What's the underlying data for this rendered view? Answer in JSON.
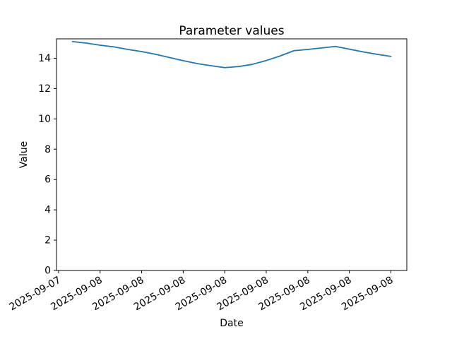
{
  "figure": {
    "title": "Parameter values",
    "xlabel": "Date",
    "ylabel": "Value"
  },
  "chart_data": {
    "type": "line",
    "title": "Parameter values",
    "xlabel": "Date",
    "ylabel": "Value",
    "legend": null,
    "grid": false,
    "line_color": "#1f77b4",
    "axis_color": "#000000",
    "background_color": "#ffffff",
    "x_times": [
      "2025-09-07 22:00",
      "2025-09-07 23:00",
      "2025-09-08 00:00",
      "2025-09-08 01:00",
      "2025-09-08 02:00",
      "2025-09-08 03:00",
      "2025-09-08 04:00",
      "2025-09-08 05:00",
      "2025-09-08 06:00",
      "2025-09-08 07:00",
      "2025-09-08 08:00",
      "2025-09-08 09:00",
      "2025-09-08 10:00",
      "2025-09-08 11:00",
      "2025-09-08 12:00",
      "2025-09-08 13:00",
      "2025-09-08 14:00",
      "2025-09-08 15:00",
      "2025-09-08 16:00",
      "2025-09-08 17:00",
      "2025-09-08 18:00",
      "2025-09-08 19:00",
      "2025-09-08 20:00",
      "2025-09-08 21:00"
    ],
    "x_hours": [
      0,
      1,
      2,
      3,
      4,
      5,
      6,
      7,
      8,
      9,
      10,
      11,
      12,
      13,
      14,
      15,
      16,
      17,
      18,
      19,
      20,
      21,
      22,
      23
    ],
    "values": [
      15.1,
      15.0,
      14.86,
      14.75,
      14.58,
      14.44,
      14.26,
      14.05,
      13.84,
      13.65,
      13.51,
      13.38,
      13.45,
      13.6,
      13.85,
      14.15,
      14.5,
      14.58,
      14.68,
      14.78,
      14.6,
      14.42,
      14.26,
      14.12
    ],
    "xlim_hours": [
      -1.15,
      24.15
    ],
    "ylim": [
      0,
      15.28
    ],
    "yticks": [
      0,
      2,
      4,
      6,
      8,
      10,
      12,
      14
    ],
    "xticks": [
      {
        "hour": -1,
        "label": "2025-09-07"
      },
      {
        "hour": 2,
        "label": "2025-09-08"
      },
      {
        "hour": 5,
        "label": "2025-09-08"
      },
      {
        "hour": 8,
        "label": "2025-09-08"
      },
      {
        "hour": 11,
        "label": "2025-09-08"
      },
      {
        "hour": 14,
        "label": "2025-09-08"
      },
      {
        "hour": 17,
        "label": "2025-09-08"
      },
      {
        "hour": 20,
        "label": "2025-09-08"
      },
      {
        "hour": 23,
        "label": "2025-09-08"
      }
    ]
  }
}
